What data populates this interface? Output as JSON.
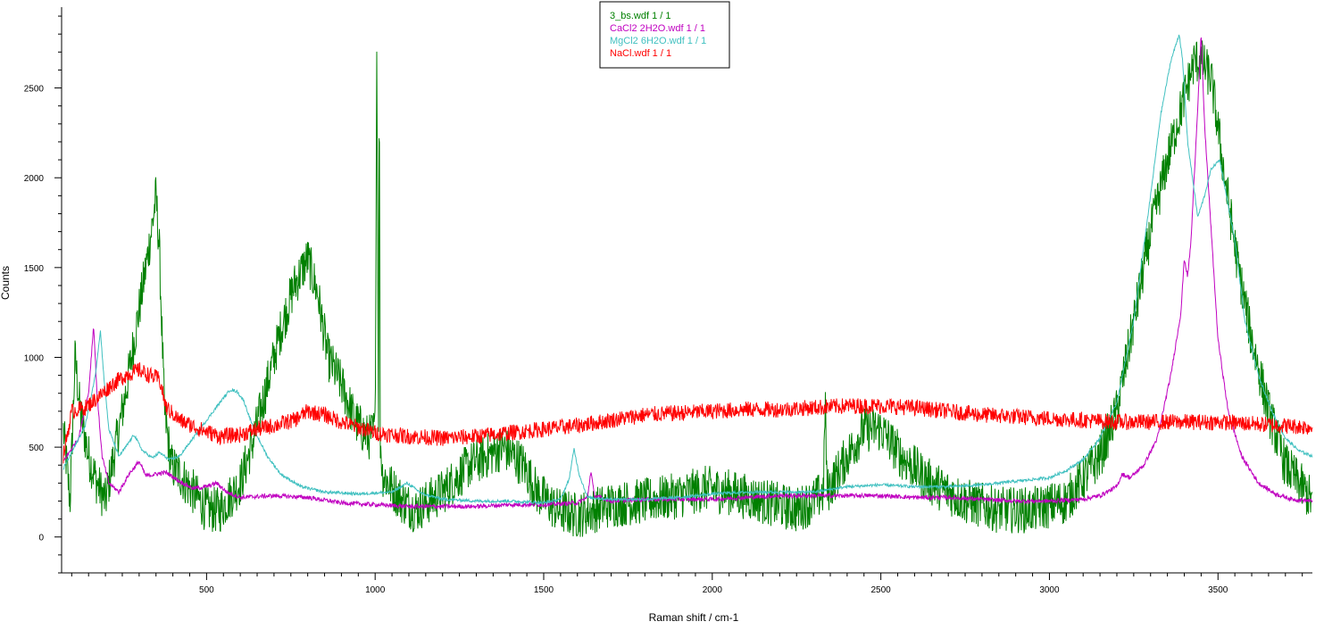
{
  "chart_data": {
    "type": "line",
    "xlabel": "Raman shift / cm-1",
    "ylabel": "Counts",
    "xlim": [
      70,
      3780
    ],
    "ylim": [
      -200,
      2950
    ],
    "grid": false,
    "legend_position": "top-center",
    "xticks": [
      500,
      1000,
      1500,
      2000,
      2500,
      3000,
      3500
    ],
    "yticks": [
      0,
      500,
      1000,
      1500,
      2000,
      2500
    ],
    "series": [
      {
        "name": "3_bs.wdf 1 / 1",
        "color": "#008000",
        "noise": 130,
        "x": [
          75,
          95,
          110,
          125,
          150,
          175,
          200,
          230,
          260,
          290,
          320,
          340,
          350,
          360,
          375,
          395,
          420,
          460,
          500,
          540,
          560,
          600,
          640,
          680,
          720,
          760,
          800,
          830,
          860,
          900,
          940,
          980,
          1000,
          1005,
          1010,
          1012,
          1015,
          1022,
          1040,
          1080,
          1120,
          1200,
          1280,
          1380,
          1440,
          1480,
          1540,
          1600,
          1650,
          1700,
          1800,
          1900,
          1980,
          2050,
          2150,
          2250,
          2300,
          2330,
          2335,
          2340,
          2400,
          2450,
          2500,
          2560,
          2650,
          2750,
          2850,
          2950,
          3050,
          3150,
          3200,
          3250,
          3300,
          3350,
          3400,
          3430,
          3450,
          3480,
          3520,
          3560,
          3600,
          3650,
          3700,
          3780
        ],
        "y": [
          600,
          200,
          1000,
          700,
          450,
          300,
          200,
          500,
          800,
          1150,
          1500,
          1750,
          1900,
          1600,
          700,
          400,
          350,
          250,
          150,
          150,
          200,
          300,
          550,
          850,
          1150,
          1400,
          1550,
          1350,
          1000,
          850,
          650,
          550,
          600,
          2800,
          600,
          2800,
          550,
          350,
          300,
          200,
          150,
          250,
          400,
          500,
          400,
          250,
          150,
          120,
          150,
          180,
          200,
          230,
          270,
          250,
          200,
          150,
          200,
          250,
          800,
          250,
          450,
          600,
          600,
          450,
          300,
          200,
          150,
          150,
          200,
          450,
          700,
          1200,
          1700,
          2100,
          2450,
          2650,
          2650,
          2550,
          2000,
          1500,
          1100,
          700,
          400,
          200
        ]
      },
      {
        "name": "CaCl2 2H2O.wdf 1 / 1",
        "color": "#c000c0",
        "noise": 12,
        "x": [
          75,
          120,
          150,
          165,
          175,
          190,
          210,
          240,
          270,
          300,
          320,
          380,
          420,
          460,
          500,
          530,
          560,
          600,
          700,
          800,
          900,
          1000,
          1100,
          1200,
          1300,
          1400,
          1500,
          1600,
          1630,
          1640,
          1650,
          1700,
          1800,
          1900,
          2000,
          2100,
          2200,
          2300,
          2400,
          2500,
          2600,
          2700,
          2800,
          2900,
          3000,
          3100,
          3150,
          3200,
          3215,
          3240,
          3280,
          3320,
          3360,
          3390,
          3400,
          3410,
          3420,
          3440,
          3450,
          3460,
          3480,
          3500,
          3530,
          3570,
          3620,
          3670,
          3720,
          3780
        ],
        "y": [
          420,
          550,
          800,
          1180,
          800,
          450,
          300,
          250,
          350,
          420,
          340,
          360,
          310,
          270,
          280,
          300,
          250,
          220,
          230,
          220,
          190,
          180,
          170,
          170,
          170,
          180,
          180,
          190,
          220,
          370,
          230,
          200,
          210,
          210,
          210,
          220,
          230,
          230,
          230,
          230,
          220,
          220,
          210,
          200,
          200,
          210,
          230,
          280,
          350,
          330,
          400,
          550,
          900,
          1250,
          1550,
          1450,
          1650,
          2400,
          2800,
          2300,
          1700,
          1100,
          700,
          450,
          300,
          240,
          210,
          200
        ]
      },
      {
        "name": "MgCl2 6H2O.wdf 1 / 1",
        "color": "#40c0c0",
        "noise": 8,
        "x": [
          75,
          100,
          140,
          170,
          185,
          195,
          210,
          240,
          260,
          285,
          310,
          340,
          360,
          390,
          420,
          460,
          500,
          540,
          570,
          590,
          610,
          640,
          680,
          720,
          780,
          850,
          950,
          1050,
          1095,
          1140,
          1200,
          1300,
          1400,
          1500,
          1550,
          1575,
          1590,
          1605,
          1630,
          1700,
          1800,
          1900,
          2000,
          2100,
          2200,
          2300,
          2400,
          2500,
          2600,
          2700,
          2800,
          2900,
          3000,
          3050,
          3100,
          3150,
          3200,
          3250,
          3300,
          3330,
          3360,
          3385,
          3395,
          3410,
          3440,
          3460,
          3480,
          3505,
          3520,
          3550,
          3580,
          3620,
          3660,
          3700,
          3740,
          3780
        ],
        "y": [
          380,
          470,
          620,
          900,
          1150,
          900,
          600,
          450,
          500,
          570,
          480,
          440,
          470,
          430,
          450,
          550,
          650,
          750,
          820,
          810,
          760,
          600,
          450,
          350,
          280,
          250,
          240,
          250,
          300,
          240,
          210,
          200,
          200,
          190,
          210,
          320,
          490,
          350,
          220,
          210,
          210,
          220,
          240,
          250,
          250,
          250,
          280,
          290,
          280,
          280,
          290,
          310,
          330,
          370,
          430,
          550,
          750,
          1200,
          1900,
          2350,
          2650,
          2800,
          2650,
          2200,
          1780,
          1900,
          2050,
          2100,
          1950,
          1650,
          1200,
          900,
          700,
          550,
          480,
          450
        ]
      },
      {
        "name": "NaCl.wdf 1 / 1",
        "color": "#ff0000",
        "noise": 45,
        "x": [
          75,
          100,
          140,
          180,
          220,
          260,
          300,
          330,
          360,
          380,
          420,
          480,
          540,
          600,
          650,
          700,
          760,
          800,
          850,
          900,
          950,
          1000,
          1100,
          1200,
          1300,
          1400,
          1500,
          1600,
          1700,
          1800,
          1900,
          2000,
          2100,
          2200,
          2300,
          2400,
          2500,
          2600,
          2700,
          2800,
          2900,
          3000,
          3100,
          3200,
          3300,
          3400,
          3500,
          3600,
          3700,
          3780
        ],
        "y": [
          450,
          700,
          720,
          780,
          850,
          900,
          930,
          900,
          880,
          720,
          650,
          600,
          560,
          570,
          600,
          620,
          650,
          700,
          680,
          640,
          610,
          580,
          560,
          550,
          560,
          580,
          600,
          620,
          650,
          680,
          690,
          700,
          710,
          710,
          720,
          730,
          730,
          720,
          700,
          680,
          670,
          660,
          650,
          640,
          640,
          640,
          640,
          630,
          620,
          610
        ]
      }
    ]
  }
}
